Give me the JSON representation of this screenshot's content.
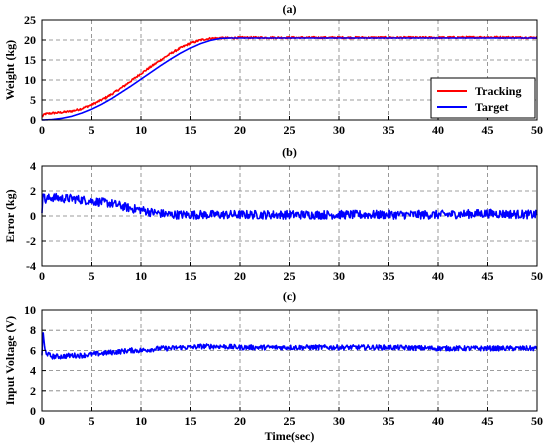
{
  "chart_data": [
    {
      "type": "line",
      "title": "(a)",
      "xlabel": "",
      "ylabel": "Weight (kg)",
      "xlim": [
        0,
        50
      ],
      "ylim": [
        0,
        25
      ],
      "xticks": [
        "0",
        "5",
        "10",
        "15",
        "20",
        "25",
        "30",
        "35",
        "40",
        "45",
        "50"
      ],
      "yticks": [
        "0",
        "5",
        "10",
        "15",
        "20",
        "25"
      ],
      "grid": true,
      "legend": "bottom-right",
      "series": [
        {
          "name": "Tracking",
          "color": "#ff0000",
          "x": [
            0,
            0.3,
            1,
            2,
            3,
            4,
            5,
            6,
            7,
            8,
            9,
            10,
            11,
            12,
            13,
            14,
            15,
            16,
            17,
            18,
            19,
            20,
            25,
            30,
            35,
            40,
            45,
            50
          ],
          "y": [
            0.8,
            1.5,
            1.7,
            1.9,
            2.2,
            2.8,
            3.8,
            5.0,
            6.4,
            8.0,
            9.8,
            11.6,
            13.3,
            15.0,
            16.6,
            18.0,
            19.2,
            20.0,
            20.4,
            20.5,
            20.5,
            20.6,
            20.6,
            20.6,
            20.6,
            20.6,
            20.7,
            20.6
          ]
        },
        {
          "name": "Target",
          "color": "#0000ff",
          "x": [
            0,
            1,
            2,
            3,
            4,
            5,
            6,
            7,
            8,
            9,
            10,
            11,
            12,
            13,
            14,
            15,
            16,
            17,
            18,
            19,
            20,
            25,
            30,
            35,
            40,
            45,
            50
          ],
          "y": [
            0,
            0.1,
            0.4,
            0.9,
            1.7,
            2.7,
            3.9,
            5.3,
            6.9,
            8.5,
            10.2,
            11.9,
            13.6,
            15.2,
            16.7,
            18.0,
            19.1,
            19.9,
            20.4,
            20.5,
            20.5,
            20.5,
            20.5,
            20.5,
            20.5,
            20.5,
            20.5
          ]
        }
      ]
    },
    {
      "type": "line",
      "title": "(b)",
      "xlabel": "",
      "ylabel": "Error (kg)",
      "xlim": [
        0,
        50
      ],
      "ylim": [
        -4,
        4
      ],
      "xticks": [
        "0",
        "5",
        "10",
        "15",
        "20",
        "25",
        "30",
        "35",
        "40",
        "45",
        "50"
      ],
      "yticks": [
        "-4",
        "-2",
        "0",
        "2",
        "4"
      ],
      "grid": true,
      "series": [
        {
          "color": "#0000ff",
          "x": [
            0,
            0.1,
            0.3,
            0.6,
            1,
            2,
            3,
            4,
            5,
            6,
            7,
            8,
            9,
            10,
            11,
            12,
            13,
            14,
            15,
            16,
            17,
            18,
            20,
            25,
            30,
            35,
            40,
            45,
            50
          ],
          "y": [
            0.4,
            2.2,
            1.2,
            1.4,
            1.5,
            1.4,
            1.4,
            1.3,
            1.2,
            1.1,
            1.0,
            0.8,
            0.6,
            0.5,
            0.3,
            0.2,
            0.1,
            0.1,
            0.1,
            0.1,
            0.1,
            0.1,
            0.1,
            0.1,
            0.1,
            0.1,
            0.1,
            0.2,
            0.1
          ]
        }
      ]
    },
    {
      "type": "line",
      "title": "(c)",
      "xlabel": "Time(sec)",
      "ylabel": "Input Voltage (V)",
      "xlim": [
        0,
        50
      ],
      "ylim": [
        0,
        10
      ],
      "xticks": [
        "0",
        "5",
        "10",
        "15",
        "20",
        "25",
        "30",
        "35",
        "40",
        "45",
        "50"
      ],
      "yticks": [
        "0",
        "2",
        "4",
        "6",
        "8",
        "10"
      ],
      "grid": true,
      "series": [
        {
          "color": "#0000ff",
          "x": [
            0,
            0.1,
            0.3,
            0.6,
            1,
            2,
            3,
            4,
            5,
            6,
            7,
            8,
            9,
            10,
            11,
            12,
            13,
            14,
            15,
            16,
            17,
            18,
            20,
            25,
            30,
            35,
            40,
            45,
            50
          ],
          "y": [
            5.6,
            7.8,
            6.0,
            5.6,
            5.4,
            5.4,
            5.5,
            5.5,
            5.6,
            5.7,
            5.8,
            5.9,
            6.0,
            6.0,
            6.1,
            6.2,
            6.2,
            6.3,
            6.3,
            6.4,
            6.4,
            6.4,
            6.3,
            6.3,
            6.3,
            6.3,
            6.2,
            6.2,
            6.2
          ]
        }
      ]
    }
  ]
}
